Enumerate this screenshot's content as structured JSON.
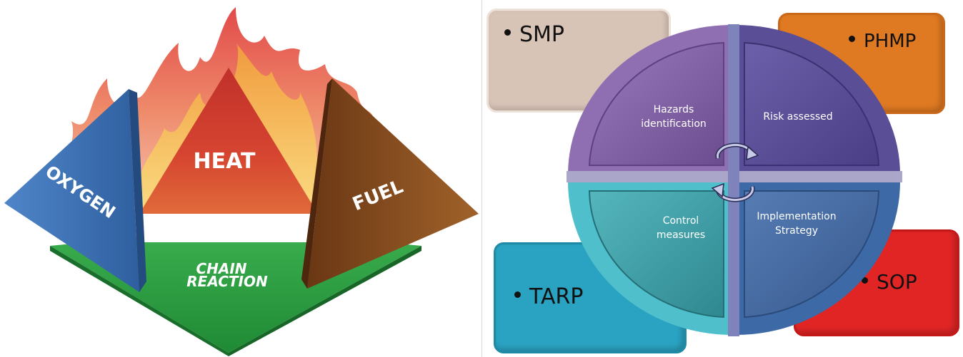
{
  "fire_tetrahedron": {
    "heat_label": "HEAT",
    "oxygen_label": "OXYGEN",
    "fuel_label": "FUEL",
    "chain_line1": "CHAIN",
    "chain_line2": "REACTION",
    "colors": {
      "heat": "#c8352a",
      "oxygen": "#3d72b8",
      "fuel": "#8a4a1c",
      "chain": "#2fa043",
      "flame_outer": "#e8665e",
      "flame_inner": "#f6c34a"
    }
  },
  "risk_cycle": {
    "quadrants": {
      "q1_line1": "Hazards",
      "q1_line2": "identification",
      "q2": "Risk assessed",
      "q3_line1": "Control",
      "q3_line2": "measures",
      "q4_line1": "Implementation",
      "q4_line2": "Strategy"
    },
    "tiles": {
      "smp": "SMP",
      "phmp": "PHMP",
      "tarp": "TARP",
      "sop": "SOP"
    },
    "colors": {
      "smp": "#d7c3b6",
      "phmp": "#e07a22",
      "tarp": "#2aa3c2",
      "sop": "#e12525",
      "q1": "#7b5a9c",
      "q2": "#5a4e97",
      "q3": "#3c9aa0",
      "q4": "#43689f"
    }
  }
}
